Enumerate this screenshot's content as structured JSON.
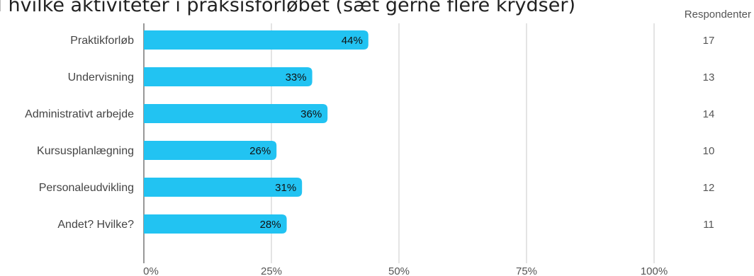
{
  "chart_data": {
    "type": "bar",
    "orientation": "horizontal",
    "title": "I hvilke aktiviteter i praksisforløbet (sæt gerne flere krydser)",
    "categories": [
      "Praktikforløb",
      "Undervisning",
      "Administrativt arbejde",
      "Kursusplanlægning",
      "Personaleudvikling",
      "Andet? Hvilke?"
    ],
    "values": [
      44,
      33,
      36,
      26,
      31,
      28
    ],
    "value_labels": [
      "44%",
      "33%",
      "36%",
      "26%",
      "31%",
      "28%"
    ],
    "xlim": [
      0,
      100
    ],
    "x_ticks": [
      "0%",
      "25%",
      "50%",
      "75%",
      "100%"
    ],
    "grid": true,
    "bar_color": "#22c3f2",
    "respondents_header": "Respondenter",
    "respondents": [
      "17",
      "13",
      "14",
      "10",
      "12",
      "11"
    ]
  }
}
